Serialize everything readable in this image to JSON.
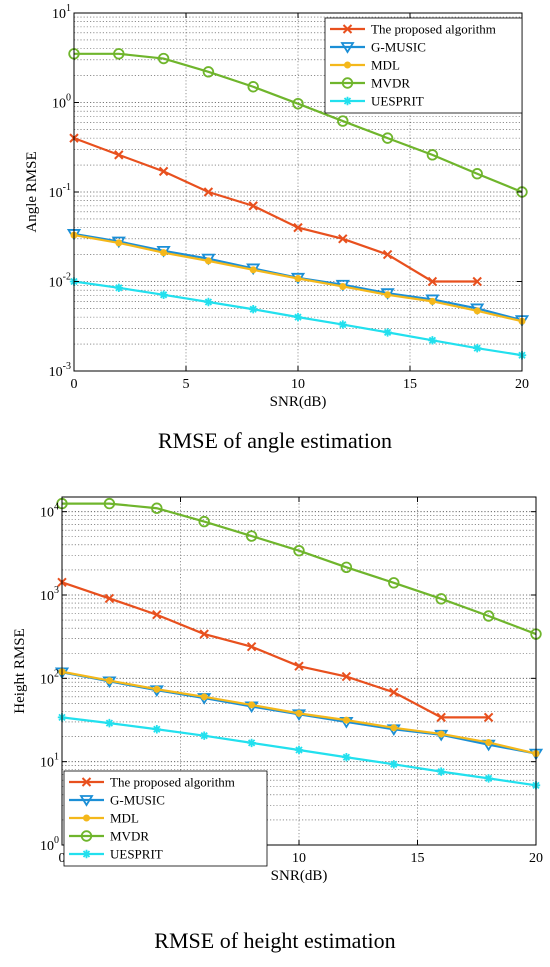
{
  "chart_data": [
    {
      "type": "line",
      "caption": "RMSE of angle estimation",
      "xlabel": "SNR(dB)",
      "ylabel": "Angle RMSE",
      "yscale": "log",
      "xlim": [
        0,
        20
      ],
      "ylim": [
        0.001,
        10
      ],
      "xticks": [
        0,
        5,
        10,
        15,
        20
      ],
      "yticks": [
        0.001,
        0.01,
        0.1,
        1,
        10
      ],
      "yticklabels": [
        [
          "10",
          "-3"
        ],
        [
          "10",
          "-2"
        ],
        [
          "10",
          "-1"
        ],
        [
          "10",
          "0"
        ],
        [
          "10",
          "1"
        ]
      ],
      "grid": true,
      "legend_position": "top-right",
      "x": [
        0,
        2,
        4,
        6,
        8,
        10,
        12,
        14,
        16,
        18,
        20
      ],
      "series": [
        {
          "name": "The proposed algorithm",
          "color": "#e8501e",
          "marker": "x",
          "values": [
            0.4,
            0.26,
            0.17,
            0.1,
            0.07,
            0.04,
            0.03,
            0.02,
            0.01,
            0.01,
            null
          ]
        },
        {
          "name": "G-MUSIC",
          "color": "#1b8fd6",
          "marker": "triangle-down",
          "values": [
            0.034,
            0.028,
            0.022,
            0.018,
            0.014,
            0.011,
            0.0092,
            0.0074,
            0.0063,
            0.005,
            0.0037
          ]
        },
        {
          "name": "MDL",
          "color": "#f4b81b",
          "marker": "dot",
          "values": [
            0.033,
            0.027,
            0.021,
            0.017,
            0.0135,
            0.0108,
            0.0088,
            0.0071,
            0.006,
            0.0047,
            0.0036
          ]
        },
        {
          "name": "MVDR",
          "color": "#6fb52c",
          "marker": "circle",
          "values": [
            3.5,
            3.5,
            3.1,
            2.2,
            1.5,
            0.97,
            0.62,
            0.4,
            0.26,
            0.16,
            0.1
          ]
        },
        {
          "name": "UESPRIT",
          "color": "#22e0ee",
          "marker": "asterisk",
          "values": [
            0.01,
            0.0085,
            0.0071,
            0.0059,
            0.0049,
            0.004,
            0.0033,
            0.0027,
            0.0022,
            0.0018,
            0.0015
          ]
        }
      ]
    },
    {
      "type": "line",
      "caption": "RMSE of height estimation",
      "xlabel": "SNR(dB)",
      "ylabel": "Height RMSE",
      "yscale": "log",
      "xlim": [
        0,
        20
      ],
      "ylim": [
        1,
        15000
      ],
      "xticks": [
        0,
        5,
        10,
        15,
        20
      ],
      "yticks": [
        1,
        10,
        100,
        1000,
        10000
      ],
      "yticklabels": [
        [
          "10",
          "0"
        ],
        [
          "10",
          "1"
        ],
        [
          "10",
          "2"
        ],
        [
          "10",
          "3"
        ],
        [
          "10",
          "4"
        ]
      ],
      "grid": true,
      "legend_position": "bottom-left",
      "x": [
        0,
        2,
        4,
        6,
        8,
        10,
        12,
        14,
        16,
        18,
        20
      ],
      "series": [
        {
          "name": "The proposed algorithm",
          "color": "#e8501e",
          "marker": "x",
          "values": [
            1420,
            910,
            580,
            340,
            240,
            140,
            105,
            68,
            34,
            34,
            null
          ]
        },
        {
          "name": "G-MUSIC",
          "color": "#1b8fd6",
          "marker": "triangle-down",
          "values": [
            118,
            92,
            72,
            58,
            46,
            37,
            30,
            24.5,
            21,
            16,
            12.5
          ]
        },
        {
          "name": "MDL",
          "color": "#f4b81b",
          "marker": "dot",
          "values": [
            120,
            94,
            74,
            60,
            48,
            38,
            31.5,
            25.5,
            21.5,
            17,
            12.5
          ]
        },
        {
          "name": "MVDR",
          "color": "#6fb52c",
          "marker": "circle",
          "values": [
            12500,
            12500,
            11000,
            7600,
            5100,
            3400,
            2150,
            1400,
            900,
            560,
            340
          ]
        },
        {
          "name": "UESPRIT",
          "color": "#22e0ee",
          "marker": "asterisk",
          "values": [
            34,
            29,
            24.5,
            20.5,
            16.8,
            13.8,
            11.3,
            9.3,
            7.6,
            6.3,
            5.2
          ]
        }
      ]
    }
  ]
}
